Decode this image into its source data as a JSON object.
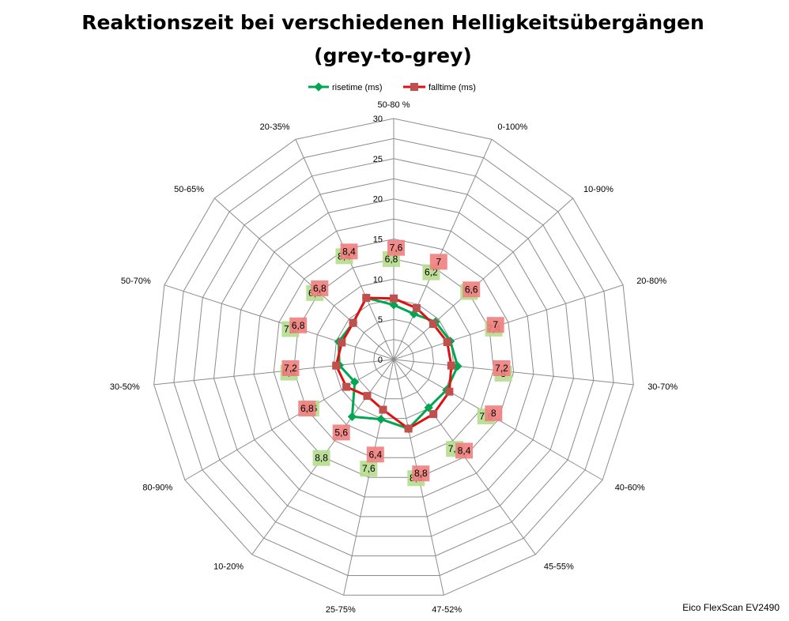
{
  "chart_data": {
    "type": "radar",
    "title": "Reaktionszeit bei verschiedenen Helligkeitsübergängen",
    "subtitle": "(grey-to-grey)",
    "categories": [
      "50-80 %",
      "0-100%",
      "10-90%",
      "20-80%",
      "30-70%",
      "40-60%",
      "45-55%",
      "47-52%",
      "25-75%",
      "10-20%",
      "80-90%",
      "30-50%",
      "50-70%",
      "50-65%",
      "20-35%"
    ],
    "rlim": [
      0,
      30
    ],
    "ticks": [
      "0",
      "5",
      "10",
      "15",
      "20",
      "25",
      "30"
    ],
    "grid": true,
    "legend": "top",
    "series": [
      {
        "name": "risetime (ms)",
        "color": "#00a651",
        "label_bg": "#b5dd8e",
        "values": [
          6.8,
          6.2,
          7,
          7.4,
          8,
          7.6,
          7.4,
          8.8,
          7.6,
          8.8,
          5.6,
          6.8,
          7.2,
          6.8,
          8.4
        ],
        "labels": [
          "6,8",
          "6,2",
          "7",
          "7,4",
          "8",
          "7,6",
          "7,4",
          "8,8",
          "7,6",
          "8,8",
          "5,6",
          "6,8",
          "7,2",
          "6,8",
          "8,4"
        ]
      },
      {
        "name": "falltime (ms)",
        "color": "#e01010",
        "label_bg": "#f08080",
        "values": [
          7.6,
          7,
          6.6,
          7,
          7.2,
          8,
          8.4,
          8.8,
          6.4,
          5.6,
          6.8,
          7.2,
          6.8,
          6.8,
          8.4
        ],
        "labels": [
          "7,6",
          "7",
          "6,6",
          "7",
          "7,2",
          "8",
          "8,4",
          "8,8",
          "6,4",
          "5,6",
          "6,8",
          "7,2",
          "6,8",
          "6,8",
          "8,4"
        ]
      }
    ]
  },
  "footer": "Eico FlexScan EV2490"
}
